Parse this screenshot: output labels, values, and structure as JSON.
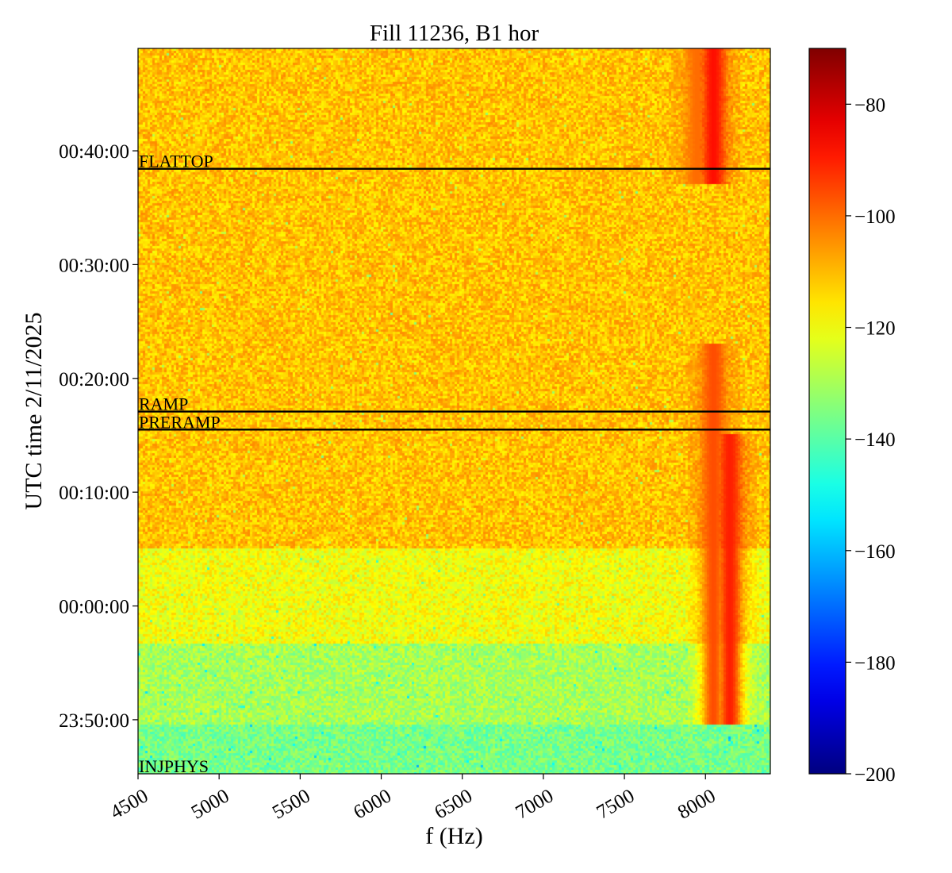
{
  "chart_data": {
    "type": "heatmap",
    "title": "Fill 11236, B1 hor",
    "xlabel": "f (Hz)",
    "ylabel": "UTC time 2/11/2025",
    "xlim": [
      4500,
      8400
    ],
    "x_ticks": [
      4500,
      5000,
      5500,
      6000,
      6500,
      7000,
      7500,
      8000
    ],
    "y_range": [
      "23:45:15",
      "00:49:00"
    ],
    "y_ticks": [
      "23:50:00",
      "00:00:00",
      "00:10:00",
      "00:20:00",
      "00:30:00",
      "00:40:00"
    ],
    "colormap": "jet",
    "colorbar": {
      "range": [
        -200,
        -70
      ],
      "ticks": [
        -80,
        -100,
        -120,
        -140,
        -160,
        -180,
        -200
      ]
    },
    "phases": [
      {
        "label": "INJPHYS",
        "time": "23:45:15"
      },
      {
        "label": "PRERAMP",
        "time": "00:15:30"
      },
      {
        "label": "RAMP",
        "time": "00:17:05"
      },
      {
        "label": "FLATTOP",
        "time": "00:38:25"
      }
    ],
    "level_regions": [
      {
        "from": "23:45:15",
        "to": "23:49:30",
        "level_db": -136
      },
      {
        "from": "23:49:30",
        "to": "23:56:45",
        "level_db": -130
      },
      {
        "from": "23:56:45",
        "to": "00:05:00",
        "level_db": -120
      },
      {
        "from": "00:05:00",
        "to": "00:49:00",
        "level_db": -111
      }
    ],
    "features": [
      {
        "f": 8050,
        "from": "23:49:30",
        "to": "00:23:00",
        "level_db": -96
      },
      {
        "f": 8150,
        "from": "23:49:30",
        "to": "00:15:00",
        "level_db": -90
      },
      {
        "f": 8050,
        "from": "00:37:00",
        "to": "00:49:00",
        "level_db": -88
      },
      {
        "f": 7950,
        "from": "00:37:00",
        "to": "00:49:00",
        "level_db": -100
      }
    ]
  }
}
